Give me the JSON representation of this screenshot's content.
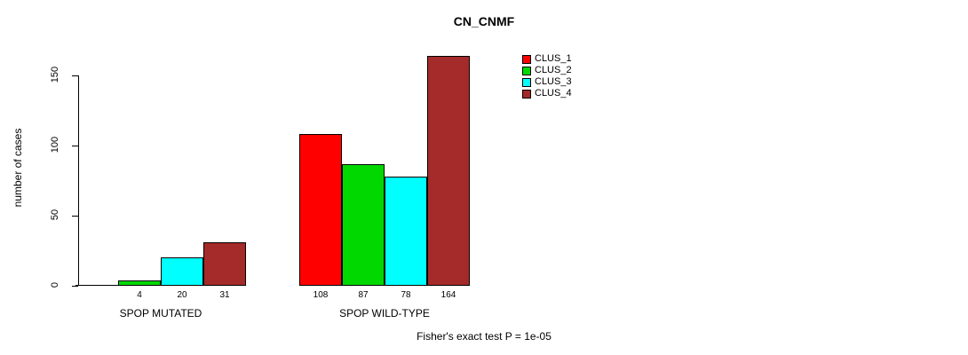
{
  "chart_data": {
    "type": "bar",
    "title": "CN_CNMF",
    "categories": [
      "SPOP MUTATED",
      "SPOP WILD-TYPE"
    ],
    "series": [
      {
        "name": "CLUS_1",
        "color": "#FF0000",
        "values": [
          0,
          108
        ]
      },
      {
        "name": "CLUS_2",
        "color": "#00D800",
        "values": [
          4,
          87
        ]
      },
      {
        "name": "CLUS_3",
        "color": "#00FFFF",
        "values": [
          20,
          78
        ]
      },
      {
        "name": "CLUS_4",
        "color": "#A52A2A",
        "values": [
          31,
          164
        ]
      }
    ],
    "ylabel": "number of cases",
    "xlabel": "",
    "yticks": [
      0,
      50,
      100,
      150
    ],
    "ylim": [
      0,
      165
    ],
    "grid": false,
    "legend_position": "top-right",
    "bar_value_labels": true,
    "annotation": "Fisher's exact test P = 1e-05"
  }
}
